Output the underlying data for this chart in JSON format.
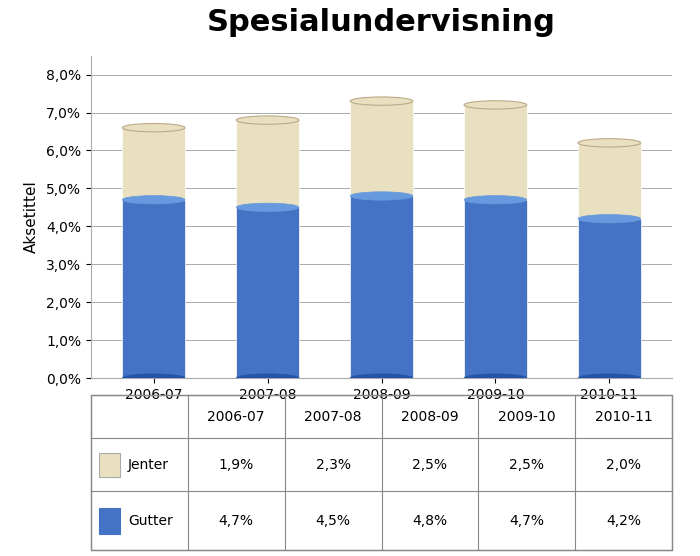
{
  "title": "Spesialundervisning",
  "ylabel": "Aksetittel",
  "categories": [
    "2006-07",
    "2007-08",
    "2008-09",
    "2009-10",
    "2010-11"
  ],
  "jenter": [
    1.9,
    2.3,
    2.5,
    2.5,
    2.0
  ],
  "gutter": [
    4.7,
    4.5,
    4.8,
    4.7,
    4.2
  ],
  "jenter_label": "Jenter",
  "gutter_label": "Gutter",
  "jenter_color": "#E8E0C0",
  "gutter_color": "#4472C4",
  "ylim": [
    0,
    8.5
  ],
  "yticks": [
    0.0,
    1.0,
    2.0,
    3.0,
    4.0,
    5.0,
    6.0,
    7.0,
    8.0
  ],
  "ytick_labels": [
    "0,0%",
    "1,0%",
    "2,0%",
    "3,0%",
    "4,0%",
    "5,0%",
    "6,0%",
    "7,0%",
    "8,0%"
  ],
  "table_jenter": [
    "1,9%",
    "2,3%",
    "2,5%",
    "2,5%",
    "2,0%"
  ],
  "table_gutter": [
    "4,7%",
    "4,5%",
    "4,8%",
    "4,7%",
    "4,2%"
  ],
  "background_color": "#FFFFFF",
  "plot_bg_color": "#FFFFFF",
  "grid_color": "#AAAAAA",
  "title_fontsize": 22,
  "axis_label_fontsize": 11,
  "tick_fontsize": 10,
  "table_fontsize": 10
}
